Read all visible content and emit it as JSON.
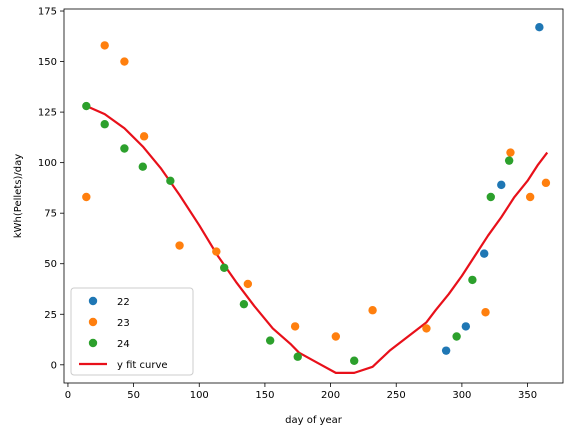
{
  "chart_data": {
    "type": "scatter",
    "xlabel": "day of year",
    "ylabel": "kWh(Pellets)/day",
    "xlim": [
      -3,
      377
    ],
    "ylim": [
      -9,
      176
    ],
    "xticks": [
      0,
      50,
      100,
      150,
      200,
      250,
      300,
      350
    ],
    "yticks": [
      0,
      25,
      50,
      75,
      100,
      125,
      150,
      175
    ],
    "grid": false,
    "legend": {
      "location": "lower left"
    },
    "series": [
      {
        "name": "22",
        "kind": "scatter",
        "color": "#1f77b4",
        "points": [
          [
            288,
            7
          ],
          [
            303,
            19
          ],
          [
            317,
            55
          ],
          [
            330,
            89
          ],
          [
            359,
            167
          ]
        ]
      },
      {
        "name": "23",
        "kind": "scatter",
        "color": "#ff7f0e",
        "points": [
          [
            14,
            83
          ],
          [
            28,
            158
          ],
          [
            43,
            150
          ],
          [
            58,
            113
          ],
          [
            85,
            59
          ],
          [
            113,
            56
          ],
          [
            137,
            40
          ],
          [
            173,
            19
          ],
          [
            204,
            14
          ],
          [
            232,
            27
          ],
          [
            273,
            18
          ],
          [
            318,
            26
          ],
          [
            337,
            105
          ],
          [
            352,
            83
          ],
          [
            364,
            90
          ]
        ]
      },
      {
        "name": "24",
        "kind": "scatter",
        "color": "#2ca02c",
        "points": [
          [
            14,
            128
          ],
          [
            28,
            119
          ],
          [
            43,
            107
          ],
          [
            57,
            98
          ],
          [
            78,
            91
          ],
          [
            119,
            48
          ],
          [
            134,
            30
          ],
          [
            154,
            12
          ],
          [
            175,
            4
          ],
          [
            218,
            2
          ],
          [
            296,
            14
          ],
          [
            308,
            42
          ],
          [
            322,
            83
          ],
          [
            336,
            101
          ]
        ]
      },
      {
        "name": "y fit curve",
        "kind": "line",
        "color": "#e8101a",
        "points": [
          [
            14,
            128
          ],
          [
            28,
            124
          ],
          [
            43,
            117
          ],
          [
            57,
            108
          ],
          [
            71,
            97
          ],
          [
            85,
            84
          ],
          [
            100,
            69
          ],
          [
            114,
            54
          ],
          [
            128,
            41
          ],
          [
            142,
            29
          ],
          [
            156,
            18
          ],
          [
            170,
            10
          ],
          [
            176,
            6
          ],
          [
            190,
            1
          ],
          [
            204,
            -4
          ],
          [
            218,
            -4
          ],
          [
            232,
            -1
          ],
          [
            245,
            7
          ],
          [
            259,
            14
          ],
          [
            273,
            21
          ],
          [
            280,
            27
          ],
          [
            290,
            35
          ],
          [
            300,
            44
          ],
          [
            310,
            54
          ],
          [
            320,
            64
          ],
          [
            330,
            73
          ],
          [
            340,
            83
          ],
          [
            350,
            91
          ],
          [
            358,
            99
          ],
          [
            365,
            105
          ]
        ]
      }
    ]
  }
}
